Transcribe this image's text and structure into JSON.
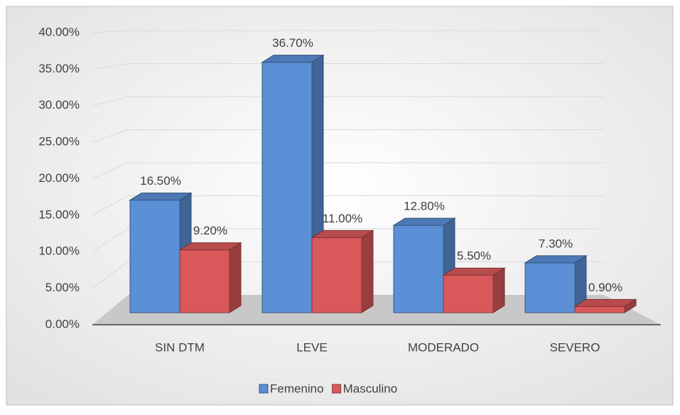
{
  "chart_data": {
    "type": "bar3d",
    "categories": [
      "SIN DTM",
      "LEVE",
      "MODERADO",
      "SEVERO"
    ],
    "series": [
      {
        "name": "Femenino",
        "color": "#5b8fd6",
        "values": [
          16.5,
          36.7,
          12.8,
          7.3
        ],
        "value_labels": [
          "16.50%",
          "36.70%",
          "12.80%",
          "7.30%"
        ]
      },
      {
        "name": "Masculino",
        "color": "#d9595a",
        "values": [
          9.2,
          11.0,
          5.5,
          0.9
        ],
        "value_labels": [
          "9.20%",
          "11.00%",
          "5.50%",
          "0.90%"
        ]
      }
    ],
    "ylim": [
      0,
      40
    ],
    "yticks": [
      {
        "value": 0,
        "label": "0.00%"
      },
      {
        "value": 5,
        "label": "5.00%"
      },
      {
        "value": 10,
        "label": "10.00%"
      },
      {
        "value": 15,
        "label": "15.00%"
      },
      {
        "value": 20,
        "label": "20.00%"
      },
      {
        "value": 25,
        "label": "25.00%"
      },
      {
        "value": 30,
        "label": "30.00%"
      },
      {
        "value": 35,
        "label": "35.00%"
      },
      {
        "value": 40,
        "label": "40.00%"
      }
    ],
    "grid": true,
    "legend": "bottom"
  }
}
